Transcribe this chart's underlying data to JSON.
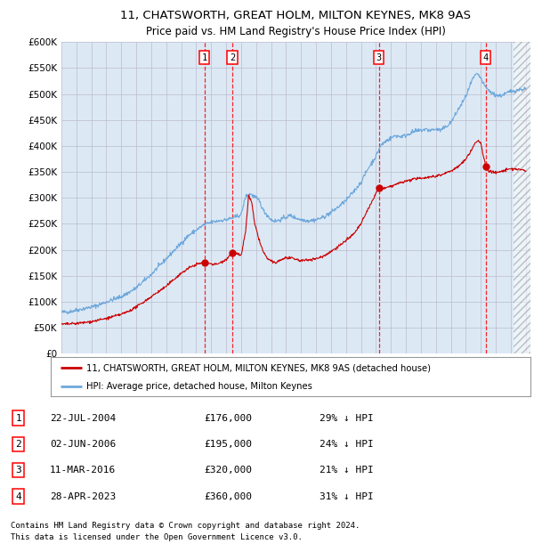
{
  "title1": "11, CHATSWORTH, GREAT HOLM, MILTON KEYNES, MK8 9AS",
  "title2": "Price paid vs. HM Land Registry's House Price Index (HPI)",
  "ylim": [
    0,
    600000
  ],
  "yticks": [
    0,
    50000,
    100000,
    150000,
    200000,
    250000,
    300000,
    350000,
    400000,
    450000,
    500000,
    550000,
    600000
  ],
  "ytick_labels": [
    "£0",
    "£50K",
    "£100K",
    "£150K",
    "£200K",
    "£250K",
    "£300K",
    "£350K",
    "£400K",
    "£450K",
    "£500K",
    "£550K",
    "£600K"
  ],
  "xlim_start": 1995.0,
  "xlim_end": 2026.3,
  "sale_dates": [
    2004.55,
    2006.42,
    2016.19,
    2023.32
  ],
  "sale_prices": [
    176000,
    195000,
    320000,
    360000
  ],
  "sale_labels": [
    "1",
    "2",
    "3",
    "4"
  ],
  "sale_date_strs": [
    "22-JUL-2004",
    "02-JUN-2006",
    "11-MAR-2016",
    "28-APR-2023"
  ],
  "sale_price_strs": [
    "£176,000",
    "£195,000",
    "£320,000",
    "£360,000"
  ],
  "sale_pct_strs": [
    "29% ↓ HPI",
    "24% ↓ HPI",
    "21% ↓ HPI",
    "31% ↓ HPI"
  ],
  "hpi_color": "#6EA8DC",
  "price_color": "#CC0000",
  "bg_color": "#DCE9F5",
  "grid_color": "#BBBBCC",
  "legend_label_price": "11, CHATSWORTH, GREAT HOLM, MILTON KEYNES, MK8 9AS (detached house)",
  "legend_label_hpi": "HPI: Average price, detached house, Milton Keynes",
  "footer": "Contains HM Land Registry data © Crown copyright and database right 2024.\nThis data is licensed under the Open Government Licence v3.0.",
  "hpi_anchors": [
    [
      1995.0,
      80000
    ],
    [
      1995.5,
      81000
    ],
    [
      1996.0,
      84000
    ],
    [
      1996.5,
      87000
    ],
    [
      1997.0,
      90000
    ],
    [
      1997.5,
      94000
    ],
    [
      1998.0,
      100000
    ],
    [
      1998.5,
      105000
    ],
    [
      1999.0,
      110000
    ],
    [
      1999.5,
      118000
    ],
    [
      2000.0,
      127000
    ],
    [
      2000.5,
      140000
    ],
    [
      2001.0,
      153000
    ],
    [
      2001.5,
      168000
    ],
    [
      2002.0,
      183000
    ],
    [
      2002.5,
      198000
    ],
    [
      2003.0,
      213000
    ],
    [
      2003.5,
      228000
    ],
    [
      2004.0,
      238000
    ],
    [
      2004.5,
      248000
    ],
    [
      2005.0,
      253000
    ],
    [
      2005.5,
      256000
    ],
    [
      2006.0,
      258000
    ],
    [
      2006.5,
      262000
    ],
    [
      2007.0,
      268000
    ],
    [
      2007.3,
      303000
    ],
    [
      2007.6,
      308000
    ],
    [
      2007.9,
      302000
    ],
    [
      2008.2,
      295000
    ],
    [
      2008.5,
      275000
    ],
    [
      2008.8,
      265000
    ],
    [
      2009.0,
      258000
    ],
    [
      2009.3,
      255000
    ],
    [
      2009.6,
      258000
    ],
    [
      2010.0,
      263000
    ],
    [
      2010.3,
      266000
    ],
    [
      2010.6,
      262000
    ],
    [
      2011.0,
      258000
    ],
    [
      2011.5,
      256000
    ],
    [
      2012.0,
      258000
    ],
    [
      2012.5,
      263000
    ],
    [
      2013.0,
      272000
    ],
    [
      2013.5,
      283000
    ],
    [
      2014.0,
      295000
    ],
    [
      2014.5,
      312000
    ],
    [
      2015.0,
      330000
    ],
    [
      2015.5,
      358000
    ],
    [
      2016.0,
      380000
    ],
    [
      2016.3,
      400000
    ],
    [
      2016.6,
      408000
    ],
    [
      2017.0,
      415000
    ],
    [
      2017.3,
      420000
    ],
    [
      2017.6,
      418000
    ],
    [
      2018.0,
      420000
    ],
    [
      2018.3,
      425000
    ],
    [
      2018.6,
      428000
    ],
    [
      2019.0,
      430000
    ],
    [
      2019.3,
      432000
    ],
    [
      2019.6,
      430000
    ],
    [
      2020.0,
      432000
    ],
    [
      2020.3,
      430000
    ],
    [
      2020.6,
      435000
    ],
    [
      2021.0,
      445000
    ],
    [
      2021.3,
      460000
    ],
    [
      2021.6,
      475000
    ],
    [
      2022.0,
      495000
    ],
    [
      2022.2,
      510000
    ],
    [
      2022.4,
      525000
    ],
    [
      2022.6,
      535000
    ],
    [
      2022.8,
      538000
    ],
    [
      2023.0,
      530000
    ],
    [
      2023.2,
      518000
    ],
    [
      2023.4,
      510000
    ],
    [
      2023.6,
      505000
    ],
    [
      2023.8,
      500000
    ],
    [
      2024.0,
      498000
    ],
    [
      2024.3,
      496000
    ],
    [
      2024.6,
      500000
    ],
    [
      2025.0,
      505000
    ],
    [
      2025.5,
      508000
    ],
    [
      2026.0,
      510000
    ]
  ],
  "price_anchors": [
    [
      1995.0,
      57000
    ],
    [
      1995.5,
      57500
    ],
    [
      1996.0,
      58500
    ],
    [
      1996.5,
      60000
    ],
    [
      1997.0,
      62000
    ],
    [
      1997.5,
      65000
    ],
    [
      1998.0,
      68000
    ],
    [
      1998.5,
      72000
    ],
    [
      1999.0,
      76000
    ],
    [
      1999.5,
      82000
    ],
    [
      2000.0,
      90000
    ],
    [
      2000.5,
      100000
    ],
    [
      2001.0,
      110000
    ],
    [
      2001.5,
      120000
    ],
    [
      2002.0,
      130000
    ],
    [
      2002.5,
      143000
    ],
    [
      2003.0,
      155000
    ],
    [
      2003.5,
      165000
    ],
    [
      2004.0,
      172000
    ],
    [
      2004.55,
      176000
    ],
    [
      2004.8,
      175000
    ],
    [
      2005.0,
      173000
    ],
    [
      2005.3,
      172000
    ],
    [
      2005.6,
      175000
    ],
    [
      2006.0,
      182000
    ],
    [
      2006.42,
      195000
    ],
    [
      2006.7,
      193000
    ],
    [
      2007.0,
      188000
    ],
    [
      2007.3,
      237000
    ],
    [
      2007.5,
      305000
    ],
    [
      2007.7,
      292000
    ],
    [
      2007.9,
      250000
    ],
    [
      2008.1,
      230000
    ],
    [
      2008.3,
      210000
    ],
    [
      2008.5,
      195000
    ],
    [
      2008.7,
      185000
    ],
    [
      2009.0,
      178000
    ],
    [
      2009.3,
      175000
    ],
    [
      2009.6,
      180000
    ],
    [
      2010.0,
      185000
    ],
    [
      2010.5,
      183000
    ],
    [
      2011.0,
      179000
    ],
    [
      2011.5,
      181000
    ],
    [
      2012.0,
      183000
    ],
    [
      2012.5,
      188000
    ],
    [
      2013.0,
      197000
    ],
    [
      2013.5,
      207000
    ],
    [
      2014.0,
      218000
    ],
    [
      2014.5,
      230000
    ],
    [
      2015.0,
      250000
    ],
    [
      2015.5,
      280000
    ],
    [
      2016.0,
      308000
    ],
    [
      2016.19,
      320000
    ],
    [
      2016.5,
      318000
    ],
    [
      2017.0,
      322000
    ],
    [
      2017.5,
      328000
    ],
    [
      2018.0,
      332000
    ],
    [
      2018.5,
      336000
    ],
    [
      2019.0,
      338000
    ],
    [
      2019.5,
      340000
    ],
    [
      2020.0,
      342000
    ],
    [
      2020.5,
      346000
    ],
    [
      2021.0,
      352000
    ],
    [
      2021.5,
      360000
    ],
    [
      2022.0,
      375000
    ],
    [
      2022.3,
      388000
    ],
    [
      2022.6,
      405000
    ],
    [
      2022.8,
      410000
    ],
    [
      2023.0,
      405000
    ],
    [
      2023.32,
      360000
    ],
    [
      2023.5,
      352000
    ],
    [
      2023.8,
      350000
    ],
    [
      2024.0,
      348000
    ],
    [
      2024.5,
      352000
    ],
    [
      2025.0,
      356000
    ],
    [
      2025.5,
      355000
    ],
    [
      2026.0,
      352000
    ]
  ]
}
